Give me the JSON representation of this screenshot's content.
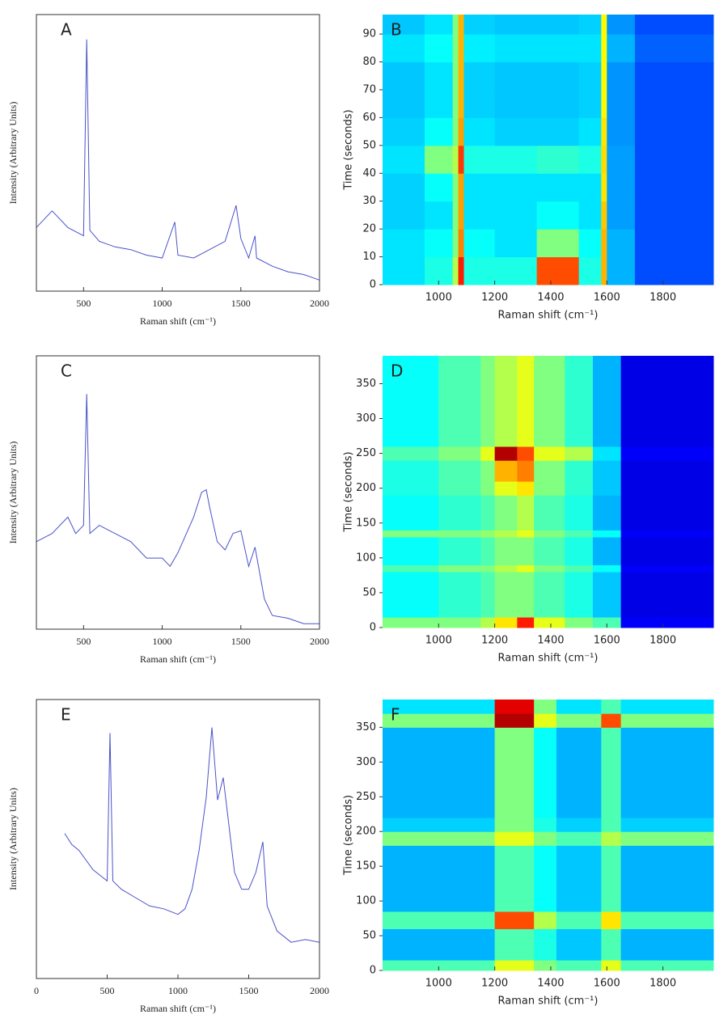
{
  "chart_data": [
    {
      "type": "line",
      "label": "A",
      "xlabel": "Raman shift (cm⁻¹)",
      "ylabel": "Intensity (Arbitrary Units)",
      "xlim": [
        200,
        2000
      ],
      "ylim": [
        0,
        100
      ],
      "xticks": [
        500,
        1000,
        1500,
        2000
      ],
      "color": "#4a52c8",
      "x": [
        200,
        300,
        400,
        500,
        520,
        540,
        600,
        700,
        800,
        900,
        1000,
        1080,
        1100,
        1200,
        1300,
        1400,
        1470,
        1500,
        1550,
        1590,
        1600,
        1700,
        1800,
        1900,
        2000
      ],
      "values": [
        23,
        29,
        23,
        20,
        91,
        22,
        18,
        16,
        15,
        13,
        12,
        25,
        13,
        12,
        15,
        18,
        31,
        19,
        12,
        20,
        12,
        9,
        7,
        6,
        4
      ]
    },
    {
      "type": "heatmap",
      "label": "B",
      "xlabel": "Raman shift (cm⁻¹)",
      "ylabel": "Time (seconds)",
      "xlim": [
        800,
        1980
      ],
      "ylim": [
        0,
        97
      ],
      "xticks": [
        1000,
        1200,
        1400,
        1600,
        1800
      ],
      "yticks": [
        0,
        10,
        20,
        30,
        40,
        50,
        60,
        70,
        80,
        90
      ],
      "colormap": "jet",
      "x_edges": [
        800,
        950,
        1050,
        1070,
        1090,
        1200,
        1350,
        1500,
        1580,
        1600,
        1700,
        1980
      ],
      "y_edges": [
        0,
        10,
        20,
        30,
        40,
        50,
        60,
        70,
        80,
        90,
        97
      ],
      "z": [
        [
          0.35,
          0.4,
          0.55,
          0.85,
          0.4,
          0.4,
          0.8,
          0.4,
          0.7,
          0.3,
          0.2
        ],
        [
          0.35,
          0.38,
          0.5,
          0.75,
          0.38,
          0.35,
          0.5,
          0.38,
          0.7,
          0.3,
          0.2
        ],
        [
          0.33,
          0.35,
          0.5,
          0.72,
          0.35,
          0.35,
          0.38,
          0.35,
          0.68,
          0.28,
          0.2
        ],
        [
          0.33,
          0.38,
          0.5,
          0.72,
          0.35,
          0.35,
          0.35,
          0.35,
          0.65,
          0.28,
          0.2
        ],
        [
          0.35,
          0.5,
          0.55,
          0.82,
          0.4,
          0.4,
          0.42,
          0.4,
          0.66,
          0.28,
          0.2
        ],
        [
          0.33,
          0.38,
          0.5,
          0.72,
          0.35,
          0.33,
          0.33,
          0.35,
          0.65,
          0.27,
          0.2
        ],
        [
          0.32,
          0.35,
          0.5,
          0.7,
          0.33,
          0.32,
          0.32,
          0.33,
          0.63,
          0.27,
          0.2
        ],
        [
          0.32,
          0.35,
          0.5,
          0.7,
          0.33,
          0.32,
          0.32,
          0.33,
          0.63,
          0.27,
          0.2
        ],
        [
          0.35,
          0.38,
          0.5,
          0.7,
          0.36,
          0.35,
          0.35,
          0.35,
          0.63,
          0.3,
          0.22
        ],
        [
          0.32,
          0.35,
          0.5,
          0.7,
          0.33,
          0.32,
          0.32,
          0.33,
          0.63,
          0.27,
          0.2
        ]
      ]
    },
    {
      "type": "line",
      "label": "C",
      "xlabel": "Raman shift (cm⁻¹)",
      "ylabel": "Intensity (Arbitrary Units)",
      "xlim": [
        200,
        2000
      ],
      "ylim": [
        0,
        100
      ],
      "xticks": [
        500,
        1000,
        1500,
        2000
      ],
      "color": "#4a52c8",
      "x": [
        200,
        300,
        400,
        450,
        500,
        520,
        540,
        600,
        700,
        800,
        900,
        1000,
        1050,
        1100,
        1200,
        1250,
        1280,
        1300,
        1350,
        1400,
        1450,
        1500,
        1550,
        1590,
        1650,
        1700,
        1800,
        1900,
        2000
      ],
      "values": [
        32,
        35,
        41,
        35,
        38,
        86,
        35,
        38,
        35,
        32,
        26,
        26,
        23,
        28,
        41,
        50,
        51,
        45,
        32,
        29,
        35,
        36,
        23,
        30,
        11,
        5,
        4,
        2,
        2
      ]
    },
    {
      "type": "heatmap",
      "label": "D",
      "xlabel": "Raman shift (cm⁻¹)",
      "ylabel": "Time (seconds)",
      "xlim": [
        800,
        1980
      ],
      "ylim": [
        0,
        390
      ],
      "xticks": [
        1000,
        1200,
        1400,
        1600,
        1800
      ],
      "yticks": [
        0,
        50,
        100,
        150,
        200,
        250,
        300,
        350
      ],
      "colormap": "jet",
      "x_edges": [
        800,
        1000,
        1150,
        1200,
        1280,
        1340,
        1450,
        1550,
        1650,
        1980
      ],
      "y_edges": [
        0,
        15,
        80,
        90,
        130,
        140,
        190,
        210,
        240,
        260,
        390
      ],
      "z": [
        [
          0.5,
          0.5,
          0.55,
          0.65,
          0.85,
          0.6,
          0.5,
          0.45,
          0.12
        ],
        [
          0.38,
          0.42,
          0.45,
          0.5,
          0.5,
          0.45,
          0.4,
          0.32,
          0.1
        ],
        [
          0.45,
          0.5,
          0.5,
          0.55,
          0.6,
          0.5,
          0.45,
          0.38,
          0.12
        ],
        [
          0.38,
          0.42,
          0.45,
          0.5,
          0.5,
          0.45,
          0.4,
          0.3,
          0.1
        ],
        [
          0.5,
          0.5,
          0.52,
          0.55,
          0.6,
          0.5,
          0.45,
          0.38,
          0.12
        ],
        [
          0.38,
          0.42,
          0.45,
          0.5,
          0.55,
          0.45,
          0.4,
          0.3,
          0.1
        ],
        [
          0.4,
          0.45,
          0.5,
          0.6,
          0.65,
          0.5,
          0.42,
          0.32,
          0.1
        ],
        [
          0.4,
          0.45,
          0.5,
          0.7,
          0.75,
          0.5,
          0.42,
          0.32,
          0.1
        ],
        [
          0.45,
          0.5,
          0.6,
          0.95,
          0.8,
          0.6,
          0.55,
          0.35,
          0.12
        ],
        [
          0.38,
          0.45,
          0.5,
          0.55,
          0.6,
          0.5,
          0.42,
          0.3,
          0.1
        ]
      ]
    },
    {
      "type": "line",
      "label": "E",
      "xlabel": "Raman shift (cm⁻¹)",
      "ylabel": "Intensity (Arbitrary Units)",
      "xlim": [
        0,
        2000
      ],
      "ylim": [
        0,
        100
      ],
      "xticks": [
        0,
        500,
        1000,
        1500,
        2000
      ],
      "color": "#4a52c8",
      "x": [
        200,
        250,
        300,
        400,
        500,
        520,
        540,
        600,
        700,
        800,
        900,
        1000,
        1050,
        1100,
        1150,
        1200,
        1240,
        1280,
        1320,
        1360,
        1400,
        1450,
        1500,
        1550,
        1600,
        1630,
        1700,
        1800,
        1900,
        2000
      ],
      "values": [
        52,
        48,
        46,
        39,
        35,
        88,
        35,
        32,
        29,
        26,
        25,
        23,
        25,
        32,
        46,
        65,
        90,
        64,
        72,
        55,
        38,
        32,
        32,
        38,
        49,
        26,
        17,
        13,
        14,
        13
      ]
    },
    {
      "type": "heatmap",
      "label": "F",
      "xlabel": "Raman shift (cm⁻¹)",
      "ylabel": "Time (seconds)",
      "xlim": [
        800,
        1980
      ],
      "ylim": [
        0,
        390
      ],
      "xticks": [
        1000,
        1200,
        1400,
        1600,
        1800
      ],
      "yticks": [
        0,
        50,
        100,
        150,
        200,
        250,
        300,
        350
      ],
      "colormap": "jet",
      "x_edges": [
        800,
        1200,
        1340,
        1420,
        1580,
        1650,
        1980
      ],
      "y_edges": [
        0,
        15,
        60,
        85,
        180,
        200,
        220,
        350,
        370,
        390
      ],
      "z": [
        [
          0.45,
          0.6,
          0.5,
          0.45,
          0.6,
          0.45
        ],
        [
          0.3,
          0.45,
          0.4,
          0.32,
          0.45,
          0.3
        ],
        [
          0.45,
          0.8,
          0.55,
          0.45,
          0.65,
          0.45
        ],
        [
          0.3,
          0.45,
          0.38,
          0.32,
          0.45,
          0.3
        ],
        [
          0.5,
          0.6,
          0.5,
          0.45,
          0.55,
          0.5
        ],
        [
          0.33,
          0.5,
          0.4,
          0.33,
          0.45,
          0.33
        ],
        [
          0.3,
          0.5,
          0.38,
          0.3,
          0.45,
          0.3
        ],
        [
          0.5,
          0.95,
          0.6,
          0.5,
          0.8,
          0.5
        ],
        [
          0.35,
          0.9,
          0.5,
          0.35,
          0.45,
          0.35
        ]
      ]
    }
  ]
}
